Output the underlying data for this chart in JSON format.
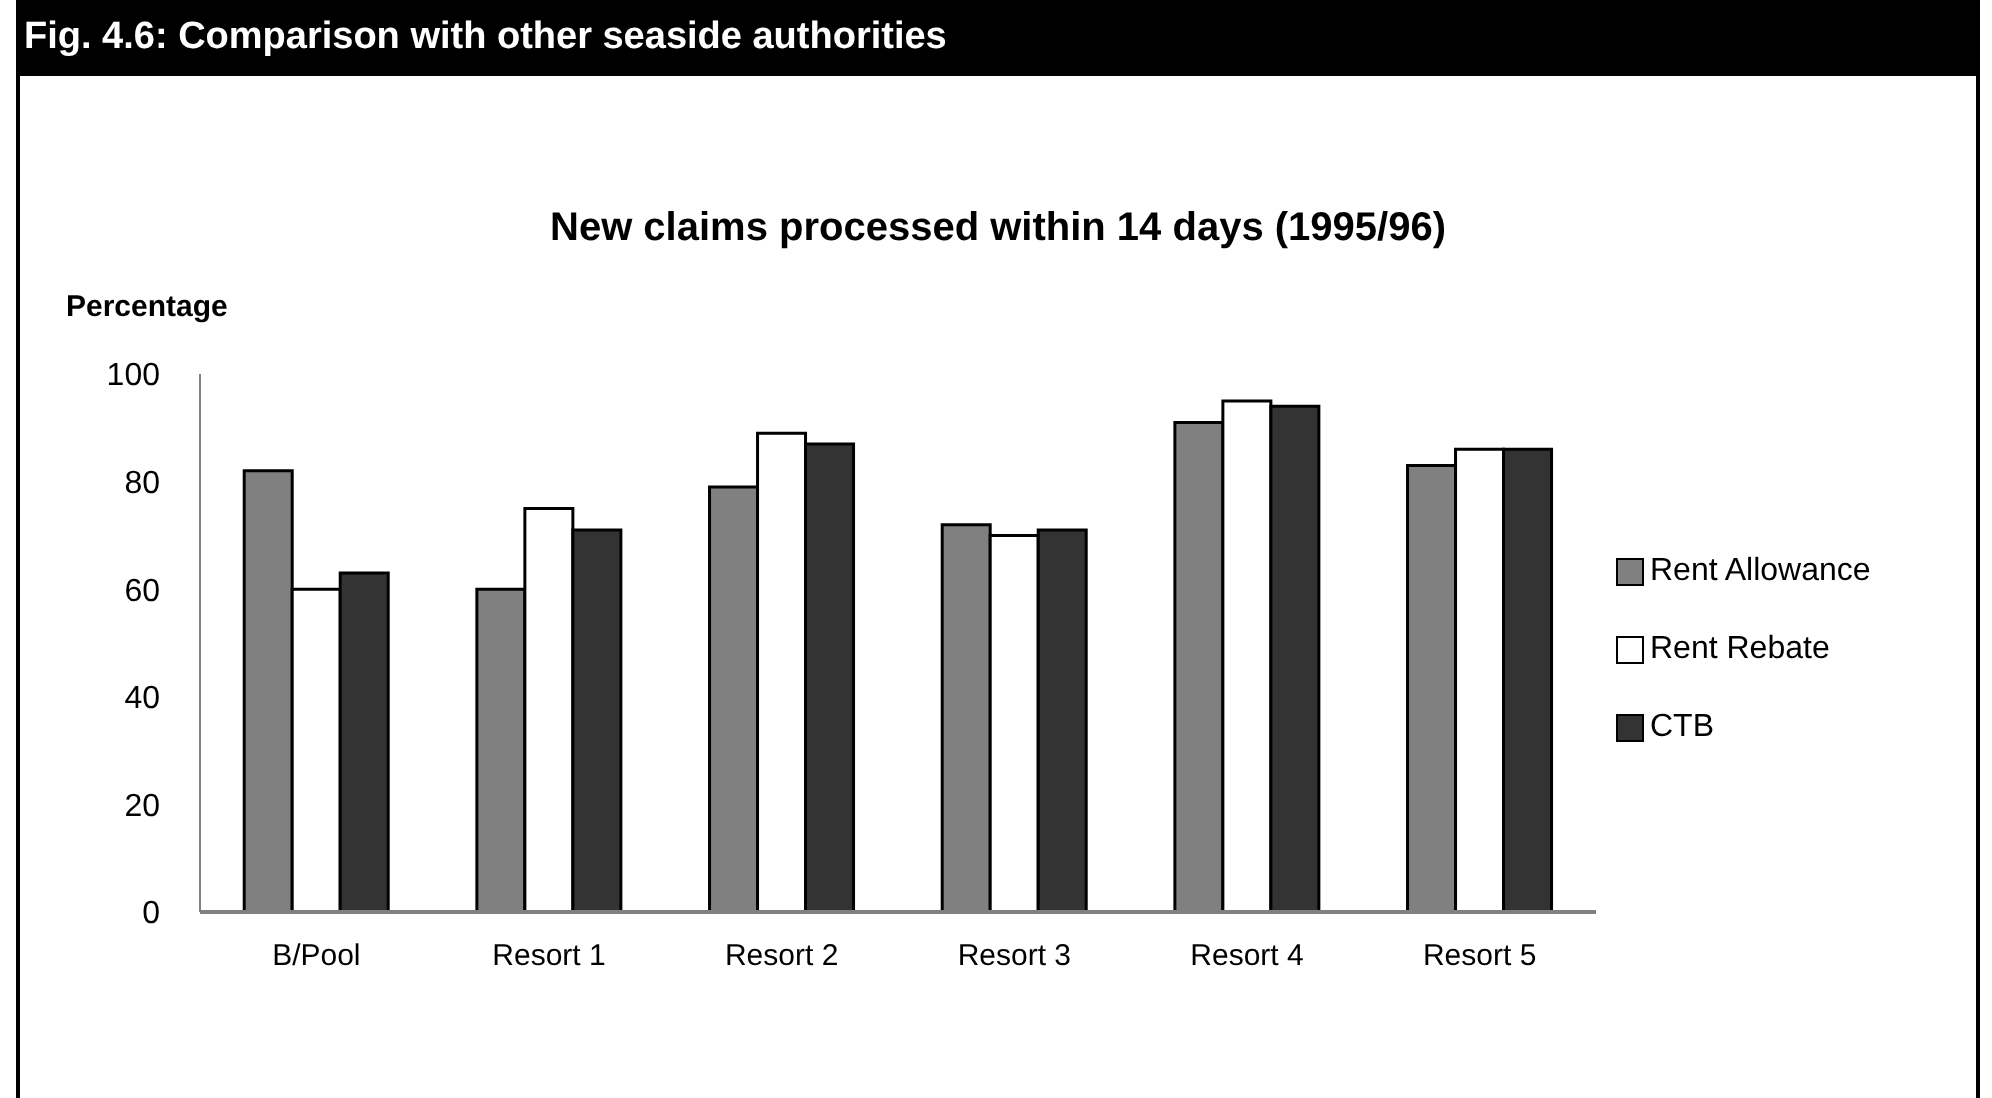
{
  "chart_data": {
    "type": "bar",
    "title": "Fig. 4.6: Comparison with other seaside authorities",
    "subtitle": "New claims processed within 14 days (1995/96)",
    "ylabel": "Percentage",
    "categories": [
      "B/Pool",
      "Resort 1",
      "Resort 2",
      "Resort 3",
      "Resort 4",
      "Resort 5"
    ],
    "series": [
      {
        "name": "Rent Allowance",
        "color": "#808080",
        "values": [
          82,
          60,
          79,
          72,
          91,
          83
        ]
      },
      {
        "name": "Rent Rebate",
        "color": "#ffffff",
        "values": [
          60,
          75,
          89,
          70,
          95,
          86
        ]
      },
      {
        "name": "CTB",
        "color": "#333333",
        "values": [
          63,
          71,
          87,
          71,
          94,
          86
        ]
      }
    ],
    "ylim": [
      0,
      100
    ],
    "yticks": [
      0,
      20,
      40,
      60,
      80,
      100
    ],
    "grid": false,
    "legend": "right"
  }
}
